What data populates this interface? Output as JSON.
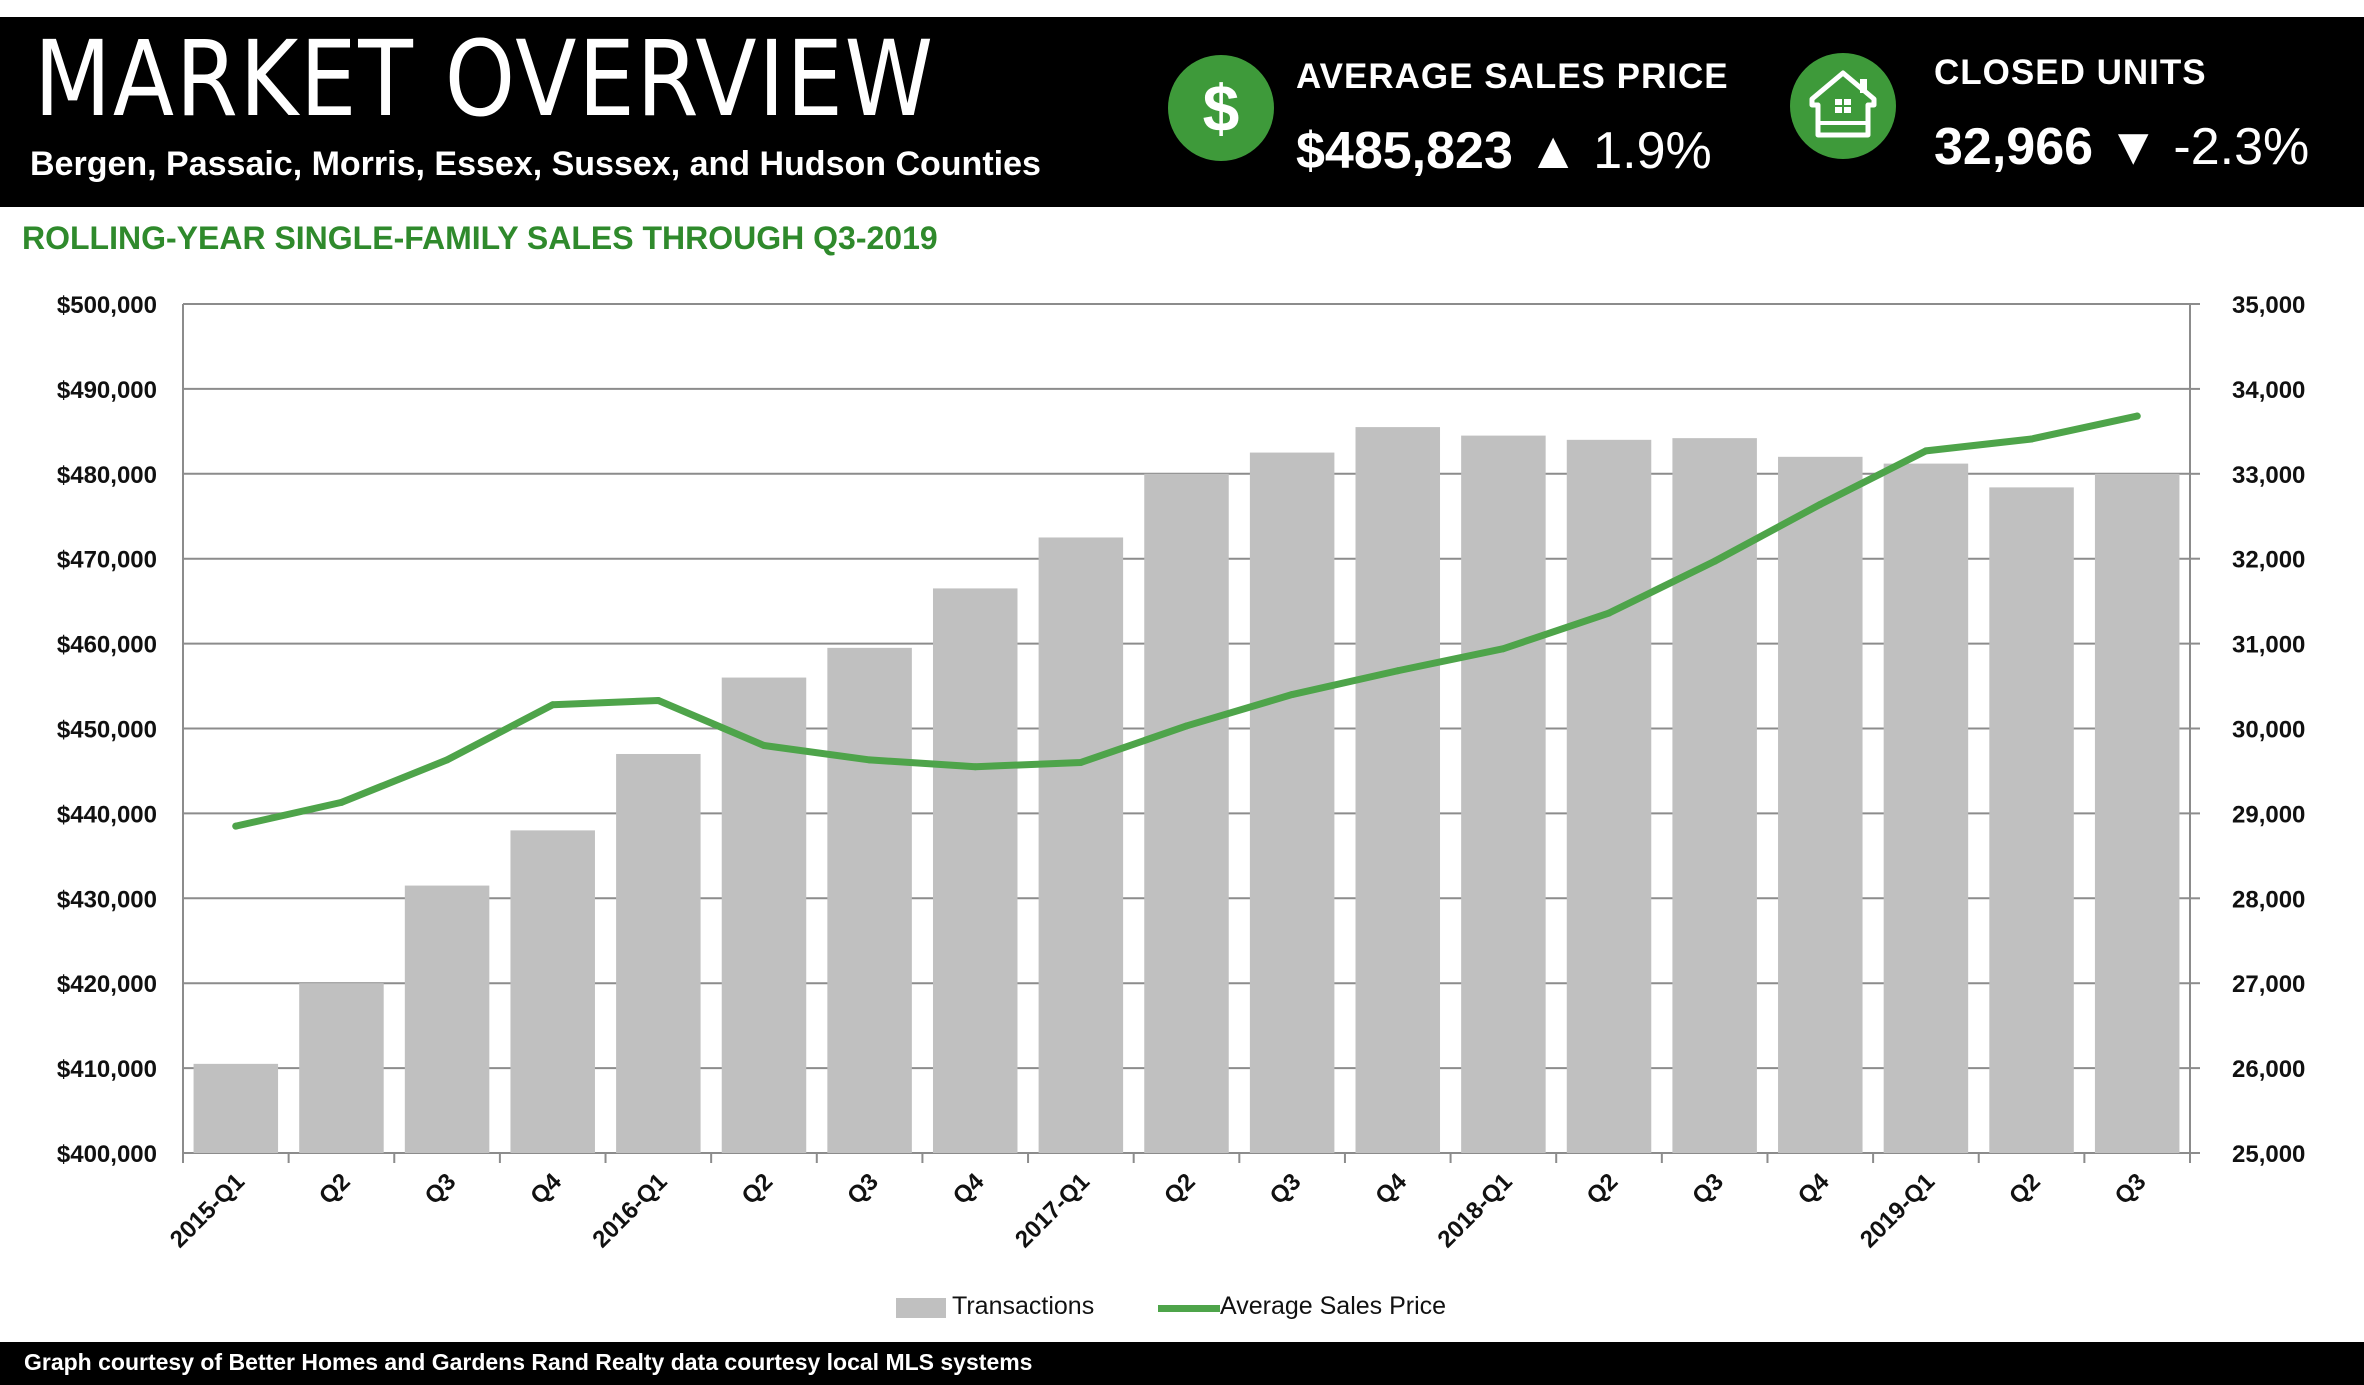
{
  "header": {
    "title": "MARKET OVERVIEW",
    "subtitle": "Bergen, Passaic, Morris, Essex, Sussex, and Hudson Counties"
  },
  "kpis": {
    "price": {
      "icon": "dollar-sign-icon",
      "label": "AVERAGE SALES PRICE",
      "value": "$485,823",
      "arrow": "▲",
      "change": "1.9%"
    },
    "units": {
      "icon": "house-icon",
      "label": "CLOSED UNITS",
      "value": "32,966",
      "arrow": "▼",
      "change": "-2.3%"
    }
  },
  "colors": {
    "header_bg": "#000000",
    "accent_green": "#3e9a3a",
    "title_green": "#2f8a2c",
    "line_green": "#4ea44a",
    "bar_gray": "#c0c0c0"
  },
  "section_title": "ROLLING-YEAR SINGLE-FAMILY SALES THROUGH Q3-2019",
  "chart_data": {
    "type": "bar",
    "title": "ROLLING-YEAR SINGLE-FAMILY SALES THROUGH Q3-2019",
    "categories": [
      "2015-Q1",
      "Q2",
      "Q3",
      "Q4",
      "2016-Q1",
      "Q2",
      "Q3",
      "Q4",
      "2017-Q1",
      "Q2",
      "Q3",
      "Q4",
      "2018-Q1",
      "Q2",
      "Q3",
      "Q4",
      "2019-Q1",
      "Q2",
      "Q3"
    ],
    "series": [
      {
        "name": "Transactions",
        "type": "bar",
        "axis": "right",
        "values": [
          26050,
          27000,
          28150,
          28800,
          29700,
          30600,
          30950,
          31650,
          32250,
          33000,
          33250,
          33550,
          33450,
          33400,
          33420,
          33200,
          33120,
          32840,
          33000
        ]
      },
      {
        "name": "Average Sales Price",
        "type": "line",
        "axis": "left",
        "values": [
          438500,
          441300,
          446300,
          452800,
          453300,
          448000,
          446300,
          445500,
          446000,
          450300,
          454000,
          456800,
          459400,
          463600,
          469700,
          476400,
          482700,
          484100,
          486800
        ]
      }
    ],
    "y_left": {
      "ylim": [
        400000,
        500000
      ],
      "ticks": [
        400000,
        410000,
        420000,
        430000,
        440000,
        450000,
        460000,
        470000,
        480000,
        490000,
        500000
      ],
      "tick_labels": [
        "$400,000",
        "$410,000",
        "$420,000",
        "$430,000",
        "$440,000",
        "$450,000",
        "$460,000",
        "$470,000",
        "$480,000",
        "$490,000",
        "$500,000"
      ]
    },
    "y_right": {
      "ylim": [
        25000,
        35000
      ],
      "ticks": [
        25000,
        26000,
        27000,
        28000,
        29000,
        30000,
        31000,
        32000,
        33000,
        34000,
        35000
      ],
      "tick_labels": [
        "25,000",
        "26,000",
        "27,000",
        "28,000",
        "29,000",
        "30,000",
        "31,000",
        "32,000",
        "33,000",
        "34,000",
        "35,000"
      ]
    },
    "grid": true,
    "legend": "bottom-center"
  },
  "legend": {
    "transactions": "Transactions",
    "avg_price": "Average Sales Price"
  },
  "footer": "Graph courtesy of Better Homes and Gardens Rand Realty data courtesy local MLS systems"
}
